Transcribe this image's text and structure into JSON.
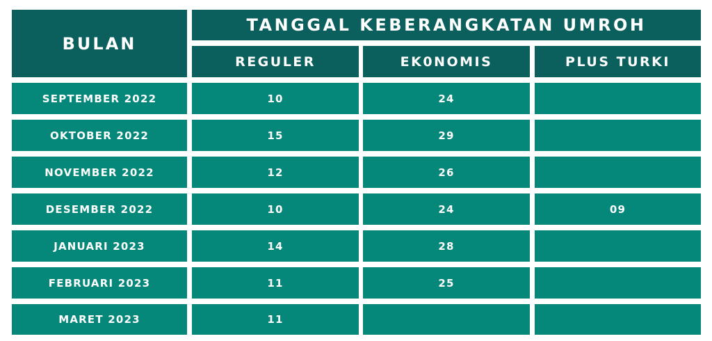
{
  "table": {
    "bulan_header": "BULAN",
    "title": "TANGGAL KEBERANGKATAN UMROH",
    "columns": [
      "REGULER",
      "EK0NOMIS",
      "PLUS TURKI"
    ],
    "rows": [
      {
        "bulan": "SEPTEMBER 2022",
        "reguler": "10",
        "ekonomis": "24",
        "plus_turki": ""
      },
      {
        "bulan": "OKTOBER 2022",
        "reguler": "15",
        "ekonomis": "29",
        "plus_turki": ""
      },
      {
        "bulan": "NOVEMBER 2022",
        "reguler": "12",
        "ekonomis": "26",
        "plus_turki": ""
      },
      {
        "bulan": "DESEMBER 2022",
        "reguler": "10",
        "ekonomis": "24",
        "plus_turki": "09"
      },
      {
        "bulan": "JANUARI 2023",
        "reguler": "14",
        "ekonomis": "28",
        "plus_turki": ""
      },
      {
        "bulan": "FEBRUARI 2023",
        "reguler": "11",
        "ekonomis": "25",
        "plus_turki": ""
      },
      {
        "bulan": "MARET 2023",
        "reguler": "11",
        "ekonomis": "",
        "plus_turki": ""
      }
    ]
  },
  "colors": {
    "header": "#0b5f5c",
    "body": "#05877a",
    "text": "#ffffff"
  }
}
